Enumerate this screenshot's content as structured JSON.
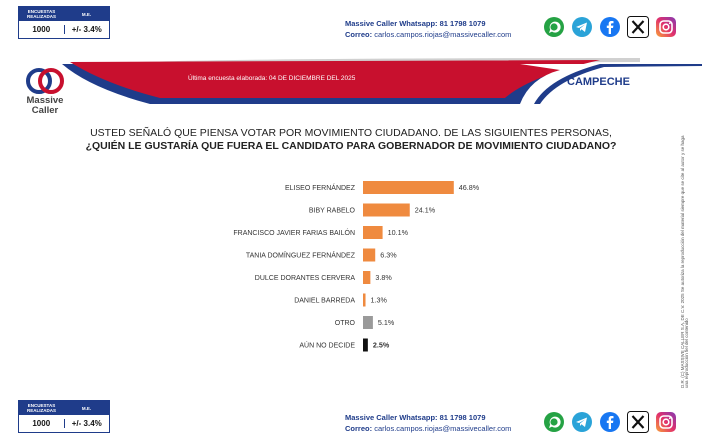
{
  "stats": {
    "header_samples": "ENCUESTAS REALIZADAS",
    "header_margin": "M.E.",
    "samples": "1000",
    "margin": "+/- 3.4%"
  },
  "contact": {
    "whatsapp": "Massive Caller Whatsapp: 81 1798 1079",
    "email_label": "Correo:",
    "email": "carlos.campos.riojas@massivecaller.com"
  },
  "socials": [
    "whatsapp-icon",
    "telegram-icon",
    "facebook-icon",
    "x-icon",
    "instagram-icon"
  ],
  "brand": {
    "name_line1": "Massive",
    "name_line2": "Caller"
  },
  "banner": {
    "date_text": "Última encuesta elaborada: 04 DE DICIEMBRE DEL 2025",
    "state": "CAMPECHE"
  },
  "question": {
    "line1": "USTED SEÑALÓ QUE PIENSA VOTAR POR MOVIMIENTO CIUDADANO. DE LAS SIGUIENTES PERSONAS,",
    "line2": "¿QUIÉN LE GUSTARÍA QUE FUERA EL CANDIDATO PARA GOBERNADOR DE MOVIMIENTO CIUDADANO?"
  },
  "side_note": "D.R. (C) MASSIVE CALLER S.A. DE C.V. 2025 Se autoriza la reproducción del material siempre que se cite al autor y se haga una reproducción fiel del contenido",
  "colors": {
    "orange": "#ef8a3f",
    "gray": "#9a9a9a",
    "black": "#111111",
    "navy": "#1f3c8a",
    "red": "#c8102e"
  },
  "chart_data": {
    "type": "bar",
    "orientation": "horizontal",
    "title": "¿QUIÉN LE GUSTARÍA QUE FUERA EL CANDIDATO PARA GOBERNADOR DE MOVIMIENTO CIUDADANO?",
    "categories": [
      "ELISEO FERNÁNDEZ",
      "BIBY RABELO",
      "FRANCISCO JAVIER FARIAS BAILÓN",
      "TANIA DOMÍNGUEZ FERNÁNDEZ",
      "DULCE DORANTES CERVERA",
      "DANIEL BARREDA",
      "OTRO",
      "AÚN NO DECIDE"
    ],
    "values": [
      46.8,
      24.1,
      10.1,
      6.3,
      3.8,
      1.3,
      5.1,
      2.5
    ],
    "value_labels": [
      "46.8%",
      "24.1%",
      "10.1%",
      "6.3%",
      "3.8%",
      "1.3%",
      "5.1%",
      "2.5%"
    ],
    "bar_colors": [
      "orange",
      "orange",
      "orange",
      "orange",
      "orange",
      "orange",
      "gray",
      "black"
    ],
    "xlim": [
      0,
      50
    ],
    "xlabel": "",
    "ylabel": "",
    "grid": false,
    "legend": "none"
  }
}
